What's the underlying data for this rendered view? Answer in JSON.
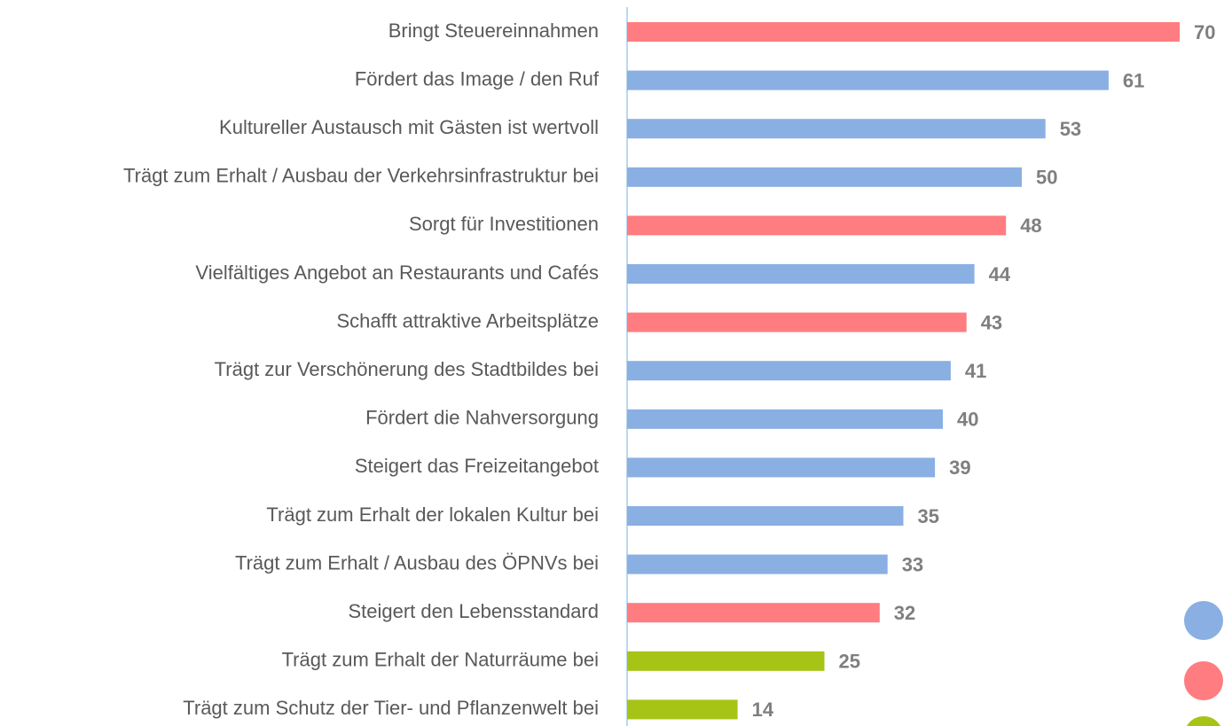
{
  "chart_data": {
    "type": "bar",
    "orientation": "horizontal",
    "categories": [
      "Bringt Steuereinnahmen",
      "Fördert das Image / den Ruf",
      "Kultureller Austausch mit Gästen ist wertvoll",
      "Trägt zum Erhalt / Ausbau der Verkehrsinfrastruktur bei",
      "Sorgt für Investitionen",
      "Vielfältiges Angebot an Restaurants und Cafés",
      "Schafft attraktive Arbeitsplätze",
      "Trägt zur Verschönerung des Stadtbildes bei",
      "Fördert die Nahversorgung",
      "Steigert das Freizeitangebot",
      "Trägt zum Erhalt der lokalen Kultur bei",
      "Trägt zum Erhalt / Ausbau des ÖPNVs bei",
      "Steigert den Lebensstandard",
      "Trägt zum Erhalt der Naturräume bei",
      "Trägt zum Schutz der Tier- und Pflanzenwelt bei"
    ],
    "values": [
      70,
      61,
      53,
      50,
      48,
      44,
      43,
      41,
      40,
      39,
      35,
      33,
      32,
      25,
      14
    ],
    "colors": [
      "#ff7c80",
      "#8aafe3",
      "#8aafe3",
      "#8aafe3",
      "#ff7c80",
      "#8aafe3",
      "#ff7c80",
      "#8aafe3",
      "#8aafe3",
      "#8aafe3",
      "#8aafe3",
      "#8aafe3",
      "#ff7c80",
      "#a5c415",
      "#a5c415"
    ],
    "xlim": [
      0,
      70
    ]
  }
}
